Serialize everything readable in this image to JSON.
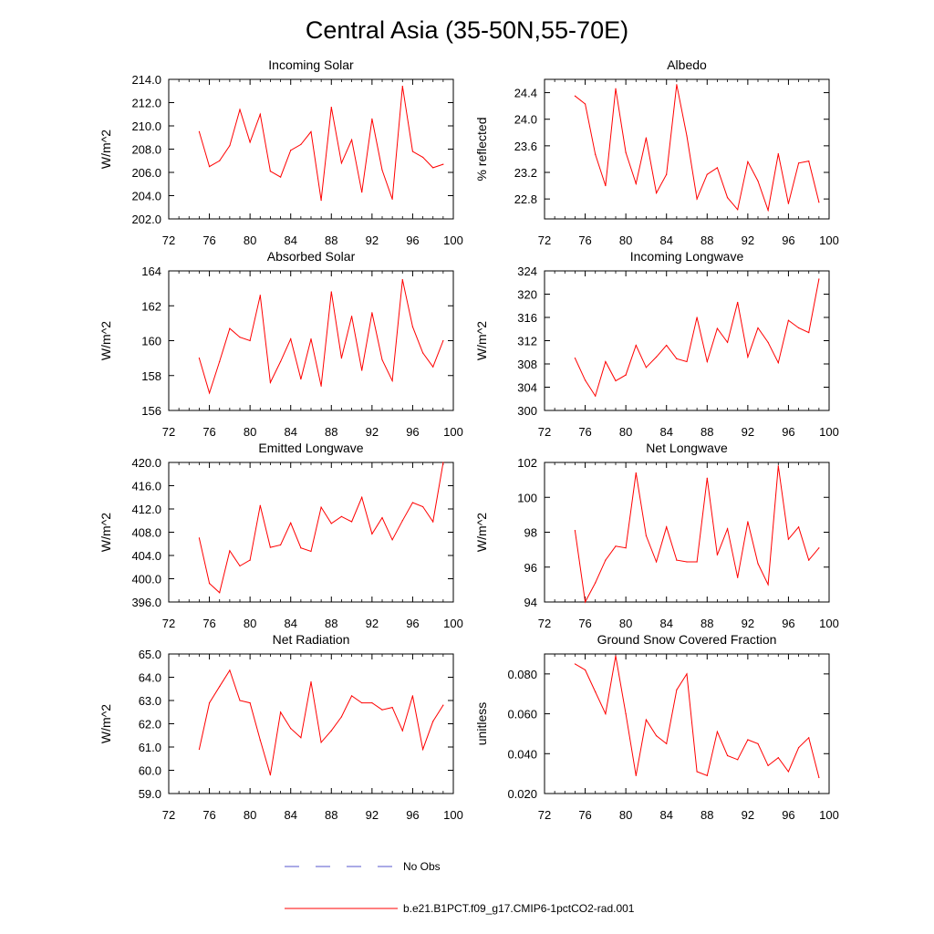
{
  "title": "Central Asia (35-50N,55-70E)",
  "colors": {
    "model": "#ff0000",
    "obs": "#5555cc",
    "axis": "#000000"
  },
  "legend": {
    "obs_label": "No Obs",
    "model_label": "b.e21.B1PCT.f09_g17.CMIP6-1pctCO2-rad.001"
  },
  "chart_data": [
    {
      "type": "line",
      "title": "Incoming Solar",
      "ylabel": "W/m^2",
      "xlim": [
        72,
        100
      ],
      "xticks": [
        "72",
        "76",
        "80",
        "84",
        "88",
        "92",
        "96",
        "100"
      ],
      "ylim": [
        202,
        214
      ],
      "yticks": [
        "202.0",
        "204.0",
        "206.0",
        "208.0",
        "210.0",
        "212.0",
        "214.0"
      ],
      "x": [
        75,
        76,
        77,
        78,
        79,
        80,
        81,
        82,
        83,
        84,
        85,
        86,
        87,
        88,
        89,
        90,
        91,
        92,
        93,
        94,
        95,
        96,
        97,
        98,
        99
      ],
      "series": [
        {
          "values": [
            209.5,
            206.5,
            207.0,
            208.3,
            211.4,
            208.6,
            211.0,
            206.1,
            205.6,
            207.9,
            208.4,
            209.5,
            203.6,
            211.6,
            206.8,
            208.8,
            204.3,
            210.6,
            206.2,
            203.7,
            213.4,
            207.8,
            207.3,
            206.4,
            206.7
          ]
        }
      ]
    },
    {
      "type": "line",
      "title": "Albedo",
      "ylabel": "% reflected",
      "xlim": [
        72,
        100
      ],
      "xticks": [
        "72",
        "76",
        "80",
        "84",
        "88",
        "92",
        "96",
        "100"
      ],
      "ylim": [
        22.5,
        24.6
      ],
      "yticks": [
        "22.8",
        "23.2",
        "23.6",
        "24.0",
        "24.4"
      ],
      "x": [
        75,
        76,
        77,
        78,
        79,
        80,
        81,
        82,
        83,
        84,
        85,
        86,
        87,
        88,
        89,
        90,
        91,
        92,
        93,
        94,
        95,
        96,
        97,
        98,
        99
      ],
      "series": [
        {
          "values": [
            24.35,
            24.23,
            23.47,
            23.0,
            24.46,
            23.5,
            23.03,
            23.72,
            22.89,
            23.17,
            24.52,
            23.75,
            22.8,
            23.17,
            23.27,
            22.82,
            22.64,
            23.36,
            23.07,
            22.63,
            23.48,
            22.73,
            23.34,
            23.37,
            22.75
          ]
        }
      ]
    },
    {
      "type": "line",
      "title": "Absorbed Solar",
      "ylabel": "W/m^2",
      "xlim": [
        72,
        100
      ],
      "xticks": [
        "72",
        "76",
        "80",
        "84",
        "88",
        "92",
        "96",
        "100"
      ],
      "ylim": [
        156,
        164
      ],
      "yticks": [
        "156",
        "158",
        "160",
        "162",
        "164"
      ],
      "x": [
        75,
        76,
        77,
        78,
        79,
        80,
        81,
        82,
        83,
        84,
        85,
        86,
        87,
        88,
        89,
        90,
        91,
        92,
        93,
        94,
        95,
        96,
        97,
        98,
        99
      ],
      "series": [
        {
          "values": [
            159.0,
            157.0,
            158.8,
            160.7,
            160.2,
            160.0,
            162.6,
            157.6,
            158.8,
            160.1,
            157.8,
            160.1,
            157.4,
            162.8,
            159.0,
            161.4,
            158.3,
            161.6,
            158.9,
            157.7,
            163.5,
            160.8,
            159.3,
            158.5,
            160.0
          ]
        }
      ]
    },
    {
      "type": "line",
      "title": "Incoming Longwave",
      "ylabel": "W/m^2",
      "xlim": [
        72,
        100
      ],
      "xticks": [
        "72",
        "76",
        "80",
        "84",
        "88",
        "92",
        "96",
        "100"
      ],
      "ylim": [
        300,
        324
      ],
      "yticks": [
        "300",
        "304",
        "308",
        "312",
        "316",
        "320",
        "324"
      ],
      "x": [
        75,
        76,
        77,
        78,
        79,
        80,
        81,
        82,
        83,
        84,
        85,
        86,
        87,
        88,
        89,
        90,
        91,
        92,
        93,
        94,
        95,
        96,
        97,
        98,
        99
      ],
      "series": [
        {
          "values": [
            309.0,
            305.2,
            302.5,
            308.4,
            305.1,
            306.1,
            311.2,
            307.4,
            309.2,
            311.2,
            308.9,
            308.4,
            316.0,
            308.4,
            314.1,
            311.7,
            318.6,
            309.2,
            314.2,
            311.7,
            308.2,
            315.5,
            314.2,
            313.4,
            322.6
          ]
        }
      ]
    },
    {
      "type": "line",
      "title": "Emitted Longwave",
      "ylabel": "W/m^2",
      "xlim": [
        72,
        100
      ],
      "xticks": [
        "72",
        "76",
        "80",
        "84",
        "88",
        "92",
        "96",
        "100"
      ],
      "ylim": [
        396,
        420
      ],
      "yticks": [
        "396.0",
        "400.0",
        "404.0",
        "408.0",
        "412.0",
        "416.0",
        "420.0"
      ],
      "x": [
        75,
        76,
        77,
        78,
        79,
        80,
        81,
        82,
        83,
        84,
        85,
        86,
        87,
        88,
        89,
        90,
        91,
        92,
        93,
        94,
        95,
        96,
        97,
        98,
        99
      ],
      "series": [
        {
          "values": [
            407.0,
            399.2,
            397.6,
            404.8,
            402.2,
            403.2,
            412.6,
            405.4,
            405.8,
            409.6,
            405.3,
            404.7,
            412.3,
            409.5,
            410.7,
            409.8,
            414.0,
            407.7,
            410.5,
            406.7,
            410.0,
            413.1,
            412.4,
            409.8,
            420.0
          ]
        }
      ]
    },
    {
      "type": "line",
      "title": "Net Longwave",
      "ylabel": "W/m^2",
      "xlim": [
        72,
        100
      ],
      "xticks": [
        "72",
        "76",
        "80",
        "84",
        "88",
        "92",
        "96",
        "100"
      ],
      "ylim": [
        94,
        102
      ],
      "yticks": [
        "94",
        "96",
        "98",
        "100",
        "102"
      ],
      "x": [
        75,
        76,
        77,
        78,
        79,
        80,
        81,
        82,
        83,
        84,
        85,
        86,
        87,
        88,
        89,
        90,
        91,
        92,
        93,
        94,
        95,
        96,
        97,
        98,
        99
      ],
      "series": [
        {
          "values": [
            98.1,
            94.0,
            95.1,
            96.4,
            97.2,
            97.1,
            101.4,
            97.8,
            96.3,
            98.3,
            96.4,
            96.3,
            96.3,
            101.1,
            96.7,
            98.2,
            95.4,
            98.6,
            96.2,
            95.0,
            101.8,
            97.6,
            98.3,
            96.4,
            97.1
          ]
        }
      ]
    },
    {
      "type": "line",
      "title": "Net Radiation",
      "ylabel": "W/m^2",
      "xlim": [
        72,
        100
      ],
      "xticks": [
        "72",
        "76",
        "80",
        "84",
        "88",
        "92",
        "96",
        "100"
      ],
      "ylim": [
        59,
        65
      ],
      "yticks": [
        "59.0",
        "60.0",
        "61.0",
        "62.0",
        "63.0",
        "64.0",
        "65.0"
      ],
      "x": [
        75,
        76,
        77,
        78,
        79,
        80,
        81,
        82,
        83,
        84,
        85,
        86,
        87,
        88,
        89,
        90,
        91,
        92,
        93,
        94,
        95,
        96,
        97,
        98,
        99
      ],
      "series": [
        {
          "values": [
            60.9,
            62.9,
            63.6,
            64.3,
            63.0,
            62.9,
            61.3,
            59.8,
            62.5,
            61.8,
            61.4,
            63.8,
            61.2,
            61.7,
            62.3,
            63.2,
            62.9,
            62.9,
            62.6,
            62.7,
            61.7,
            63.2,
            60.9,
            62.1,
            62.8
          ]
        }
      ]
    },
    {
      "type": "line",
      "title": "Ground Snow Covered Fraction",
      "ylabel": "unitless",
      "xlim": [
        72,
        100
      ],
      "xticks": [
        "72",
        "76",
        "80",
        "84",
        "88",
        "92",
        "96",
        "100"
      ],
      "ylim": [
        0.02,
        0.09
      ],
      "yticks": [
        "0.020",
        "0.040",
        "0.060",
        "0.080"
      ],
      "x": [
        75,
        76,
        77,
        78,
        79,
        80,
        81,
        82,
        83,
        84,
        85,
        86,
        87,
        88,
        89,
        90,
        91,
        92,
        93,
        94,
        95,
        96,
        97,
        98,
        99
      ],
      "series": [
        {
          "values": [
            0.085,
            0.082,
            0.071,
            0.06,
            0.089,
            0.06,
            0.029,
            0.057,
            0.049,
            0.045,
            0.072,
            0.08,
            0.031,
            0.029,
            0.051,
            0.039,
            0.037,
            0.047,
            0.045,
            0.034,
            0.038,
            0.031,
            0.043,
            0.048,
            0.028
          ]
        }
      ]
    }
  ]
}
